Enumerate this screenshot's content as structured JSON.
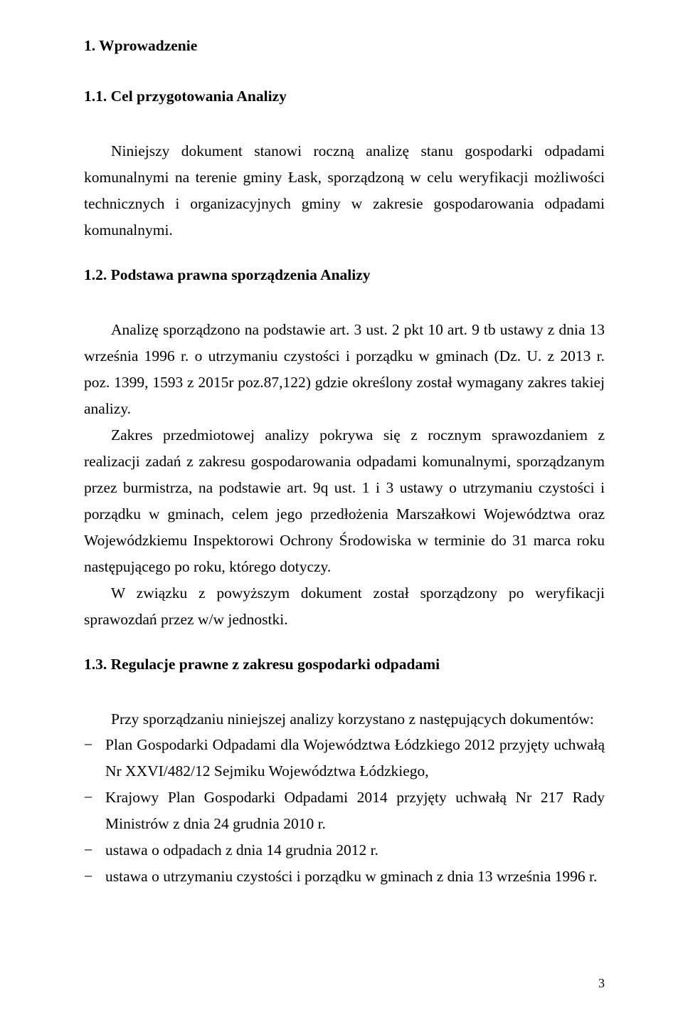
{
  "colors": {
    "text": "#000000",
    "background": "#ffffff"
  },
  "typography": {
    "font_family": "Times New Roman",
    "body_size_pt": 16,
    "heading_weight": "bold",
    "line_height": 1.72,
    "text_align": "justify"
  },
  "page_number": "3",
  "sections": {
    "s1": {
      "title": "1. Wprowadzenie",
      "s11": {
        "title": "1.1. Cel przygotowania Analizy",
        "para1": "Niniejszy dokument stanowi roczną analizę stanu gospodarki odpadami komunalnymi na terenie gminy Łask, sporządzoną w celu weryfikacji możliwości technicznych i organizacyjnych gminy w zakresie gospodarowania odpadami komunalnymi."
      },
      "s12": {
        "title": "1.2. Podstawa prawna sporządzenia Analizy",
        "para1": "Analizę sporządzono na podstawie art. 3 ust. 2 pkt 10 art. 9 tb ustawy z dnia 13 września 1996 r. o utrzymaniu czystości i porządku w gminach (Dz. U. z 2013 r. poz. 1399, 1593 z 2015r poz.87,122)  gdzie określony został wymagany zakres takiej analizy.",
        "para2": "Zakres przedmiotowej analizy  pokrywa się z rocznym sprawozdaniem z realizacji zadań z zakresu gospodarowania odpadami komunalnymi, sporządzanym przez burmistrza, na podstawie art. 9q ust. 1 i 3 ustawy o utrzymaniu czystości i porządku w gminach, celem jego przedłożenia Marszałkowi Województwa oraz Wojewódzkiemu Inspektorowi Ochrony Środowiska w terminie do 31 marca roku następującego po roku, którego dotyczy.",
        "para3": "W związku z powyższym dokument został sporządzony po weryfikacji sprawozdań przez w/w jednostki."
      },
      "s13": {
        "title": "1.3. Regulacje prawne z zakresu gospodarki odpadami",
        "intro": "Przy sporządzaniu niniejszej analizy korzystano z następujących dokumentów:",
        "items": [
          "Plan Gospodarki Odpadami dla Województwa Łódzkiego 2012 przyjęty uchwałą Nr XXVI/482/12 Sejmiku Województwa Łódzkiego,",
          "Krajowy Plan Gospodarki Odpadami 2014 przyjęty uchwałą Nr 217 Rady Ministrów z dnia 24 grudnia 2010 r.",
          "ustawa o odpadach z dnia 14 grudnia 2012 r.",
          "ustawa o utrzymaniu czystości i porządku w gminach z dnia 13 września 1996 r."
        ]
      }
    }
  }
}
